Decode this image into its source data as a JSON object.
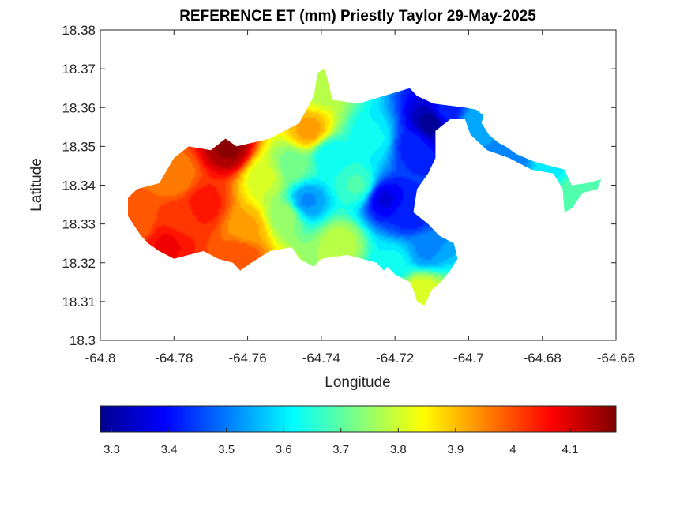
{
  "chart_data": {
    "type": "heatmap",
    "title": "REFERENCE ET (mm) Priestly Taylor 29-May-2025",
    "xlabel": "Longitude",
    "ylabel": "Latitude",
    "xlim": [
      -64.8,
      -64.66
    ],
    "ylim": [
      18.3,
      18.38
    ],
    "xticks": [
      -64.8,
      -64.78,
      -64.76,
      -64.74,
      -64.72,
      -64.7,
      -64.68,
      -64.66
    ],
    "xtick_labels": [
      "-64.8",
      "-64.78",
      "-64.76",
      "-64.74",
      "-64.72",
      "-64.7",
      "-64.68",
      "-64.66"
    ],
    "yticks": [
      18.3,
      18.31,
      18.32,
      18.33,
      18.34,
      18.35,
      18.36,
      18.37,
      18.38
    ],
    "ytick_labels": [
      "18.3",
      "18.31",
      "18.32",
      "18.33",
      "18.34",
      "18.35",
      "18.36",
      "18.37",
      "18.38"
    ],
    "colorbar": {
      "colormap": "jet",
      "range": [
        3.28,
        4.18
      ],
      "ticks": [
        3.3,
        3.4,
        3.5,
        3.6,
        3.7,
        3.8,
        3.9,
        4.0,
        4.1
      ],
      "tick_labels": [
        "3.3",
        "3.4",
        "3.5",
        "3.6",
        "3.7",
        "3.8",
        "3.9",
        "4",
        "4.1"
      ],
      "placement": "bottom"
    },
    "grid": false,
    "island_outline": [
      [
        -64.7925,
        18.3367
      ],
      [
        -64.79,
        18.339
      ],
      [
        -64.784,
        18.3405
      ],
      [
        -64.78,
        18.347
      ],
      [
        -64.776,
        18.35
      ],
      [
        -64.77,
        18.349
      ],
      [
        -64.766,
        18.352
      ],
      [
        -64.763,
        18.35
      ],
      [
        -64.754,
        18.352
      ],
      [
        -64.746,
        18.356
      ],
      [
        -64.742,
        18.363
      ],
      [
        -64.741,
        18.369
      ],
      [
        -64.739,
        18.37
      ],
      [
        -64.737,
        18.362
      ],
      [
        -64.73,
        18.361
      ],
      [
        -64.723,
        18.363
      ],
      [
        -64.716,
        18.365
      ],
      [
        -64.714,
        18.363
      ],
      [
        -64.7095,
        18.361
      ],
      [
        -64.701,
        18.36
      ],
      [
        -64.698,
        18.3595
      ],
      [
        -64.696,
        18.358
      ],
      [
        -64.6965,
        18.356
      ],
      [
        -64.6945,
        18.353
      ],
      [
        -64.692,
        18.351
      ],
      [
        -64.69,
        18.35
      ],
      [
        -64.687,
        18.348
      ],
      [
        -64.682,
        18.346
      ],
      [
        -64.678,
        18.345
      ],
      [
        -64.674,
        18.344
      ],
      [
        -64.672,
        18.34
      ],
      [
        -64.668,
        18.3405
      ],
      [
        -64.664,
        18.3415
      ],
      [
        -64.665,
        18.339
      ],
      [
        -64.669,
        18.338
      ],
      [
        -64.672,
        18.334
      ],
      [
        -64.674,
        18.333
      ],
      [
        -64.6745,
        18.339
      ],
      [
        -64.677,
        18.343
      ],
      [
        -64.683,
        18.344
      ],
      [
        -64.689,
        18.347
      ],
      [
        -64.695,
        18.349
      ],
      [
        -64.6995,
        18.353
      ],
      [
        -64.701,
        18.357
      ],
      [
        -64.705,
        18.357
      ],
      [
        -64.709,
        18.354
      ],
      [
        -64.709,
        18.347
      ],
      [
        -64.711,
        18.343
      ],
      [
        -64.714,
        18.339
      ],
      [
        -64.715,
        18.333
      ],
      [
        -64.711,
        18.33
      ],
      [
        -64.708,
        18.327
      ],
      [
        -64.704,
        18.325
      ],
      [
        -64.703,
        18.321
      ],
      [
        -64.705,
        18.318
      ],
      [
        -64.7075,
        18.315
      ],
      [
        -64.71,
        18.313
      ],
      [
        -64.712,
        18.309
      ],
      [
        -64.714,
        18.31
      ],
      [
        -64.715,
        18.313
      ],
      [
        -64.716,
        18.315
      ],
      [
        -64.72,
        18.317
      ],
      [
        -64.722,
        18.319
      ],
      [
        -64.723,
        18.318
      ],
      [
        -64.725,
        18.32
      ],
      [
        -64.733,
        18.322
      ],
      [
        -64.74,
        18.321
      ],
      [
        -64.742,
        18.319
      ],
      [
        -64.746,
        18.321
      ],
      [
        -64.748,
        18.324
      ],
      [
        -64.754,
        18.323
      ],
      [
        -64.759,
        18.32
      ],
      [
        -64.762,
        18.318
      ],
      [
        -64.764,
        18.32
      ],
      [
        -64.768,
        18.321
      ],
      [
        -64.772,
        18.323
      ],
      [
        -64.776,
        18.322
      ],
      [
        -64.78,
        18.321
      ],
      [
        -64.784,
        18.323
      ],
      [
        -64.787,
        18.325
      ],
      [
        -64.789,
        18.327
      ],
      [
        -64.7925,
        18.332
      ]
    ],
    "hotspots": [
      {
        "lon": -64.79,
        "lat": 18.3305,
        "value": 3.98
      },
      {
        "lon": -64.782,
        "lat": 18.325,
        "value": 4.07
      },
      {
        "lon": -64.7785,
        "lat": 18.3315,
        "value": 4.02
      },
      {
        "lon": -64.772,
        "lat": 18.335,
        "value": 4.05
      },
      {
        "lon": -64.78,
        "lat": 18.342,
        "value": 3.95
      },
      {
        "lon": -64.765,
        "lat": 18.3495,
        "value": 4.16
      },
      {
        "lon": -64.762,
        "lat": 18.322,
        "value": 4.0
      },
      {
        "lon": -64.76,
        "lat": 18.329,
        "value": 3.92
      },
      {
        "lon": -64.755,
        "lat": 18.342,
        "value": 3.8
      },
      {
        "lon": -64.75,
        "lat": 18.332,
        "value": 3.75
      },
      {
        "lon": -64.744,
        "lat": 18.336,
        "value": 3.52
      },
      {
        "lon": -64.743,
        "lat": 18.354,
        "value": 3.93
      },
      {
        "lon": -64.74,
        "lat": 18.365,
        "value": 3.78
      },
      {
        "lon": -64.738,
        "lat": 18.348,
        "value": 3.62
      },
      {
        "lon": -64.735,
        "lat": 18.325,
        "value": 3.78
      },
      {
        "lon": -64.73,
        "lat": 18.34,
        "value": 3.68
      },
      {
        "lon": -64.726,
        "lat": 18.352,
        "value": 3.62
      },
      {
        "lon": -64.723,
        "lat": 18.3365,
        "value": 3.37
      },
      {
        "lon": -64.716,
        "lat": 18.332,
        "value": 3.42
      },
      {
        "lon": -64.715,
        "lat": 18.35,
        "value": 3.42
      },
      {
        "lon": -64.71,
        "lat": 18.356,
        "value": 3.3
      },
      {
        "lon": -64.712,
        "lat": 18.323,
        "value": 3.52
      },
      {
        "lon": -64.713,
        "lat": 18.313,
        "value": 3.82
      },
      {
        "lon": -64.706,
        "lat": 18.359,
        "value": 3.42
      },
      {
        "lon": -64.698,
        "lat": 18.356,
        "value": 3.55
      },
      {
        "lon": -64.688,
        "lat": 18.3475,
        "value": 3.5
      },
      {
        "lon": -64.678,
        "lat": 18.345,
        "value": 3.6
      },
      {
        "lon": -64.671,
        "lat": 18.338,
        "value": 3.7
      },
      {
        "lon": -64.666,
        "lat": 18.341,
        "value": 3.68
      },
      {
        "lon": -64.72,
        "lat": 18.32,
        "value": 3.62
      },
      {
        "lon": -64.748,
        "lat": 18.345,
        "value": 3.72
      }
    ]
  }
}
